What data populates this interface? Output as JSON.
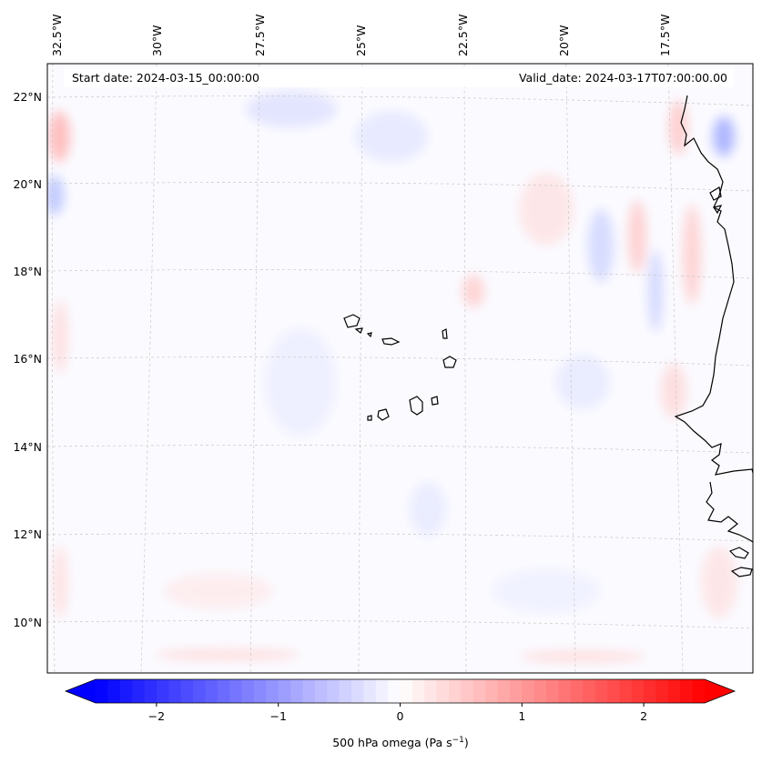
{
  "map": {
    "start_date": "Start date: 2024-03-15_00:00:00",
    "valid_date": "Valid_date: 2024-03-17T07:00:00.00",
    "lon_labels": [
      "32.5°W",
      "30°W",
      "27.5°W",
      "25°W",
      "22.5°W",
      "20°W",
      "17.5°W"
    ],
    "lat_labels": [
      "22°N",
      "20°N",
      "18°N",
      "16°N",
      "14°N",
      "12°N",
      "10°N"
    ],
    "field": "500 hPa omega",
    "colormap": "bwr"
  },
  "colorbar": {
    "ticks": [
      "−2",
      "−1",
      "0",
      "1",
      "2"
    ],
    "tick_values": [
      -2,
      -1,
      0,
      1,
      2
    ],
    "range": [
      -2.5,
      2.5
    ],
    "label_main": "500 hPa omega (Pa s",
    "label_sup": "−1",
    "label_end": ")",
    "colors": {
      "min": "#0000ff",
      "mid": "#ffffff",
      "max": "#ff0000"
    }
  }
}
